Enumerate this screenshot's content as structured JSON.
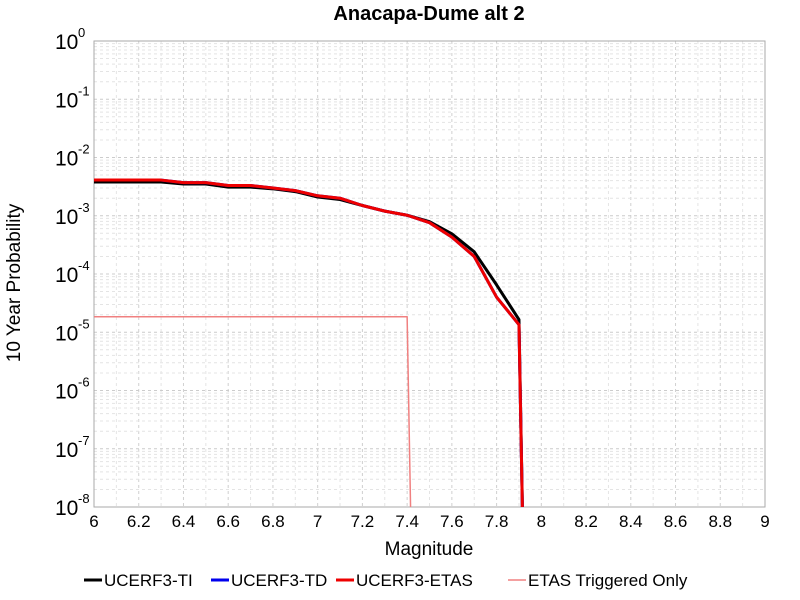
{
  "chart_data": {
    "type": "line",
    "title": "Anacapa-Dume alt 2",
    "xlabel": "Magnitude",
    "ylabel": "10 Year Probability",
    "xlim": [
      6,
      9
    ],
    "ylim": [
      1e-08,
      1
    ],
    "yscale": "log",
    "grid": true,
    "legend_position": "bottom",
    "x_ticks": [
      "6",
      "6.2",
      "6.4",
      "6.6",
      "6.8",
      "7",
      "7.2",
      "7.4",
      "7.6",
      "7.8",
      "8",
      "8.2",
      "8.4",
      "8.6",
      "8.8",
      "9"
    ],
    "y_ticks": [
      {
        "base": "10",
        "exp": "0"
      },
      {
        "base": "10",
        "exp": "-1"
      },
      {
        "base": "10",
        "exp": "-2"
      },
      {
        "base": "10",
        "exp": "-3"
      },
      {
        "base": "10",
        "exp": "-4"
      },
      {
        "base": "10",
        "exp": "-5"
      },
      {
        "base": "10",
        "exp": "-6"
      },
      {
        "base": "10",
        "exp": "-7"
      },
      {
        "base": "10",
        "exp": "-8"
      }
    ],
    "series": [
      {
        "name": "UCERF3-TI",
        "color": "#000000",
        "width": 3,
        "x": [
          6.0,
          6.1,
          6.2,
          6.3,
          6.4,
          6.5,
          6.6,
          6.7,
          6.8,
          6.9,
          7.0,
          7.1,
          7.2,
          7.3,
          7.4,
          7.5,
          7.6,
          7.7,
          7.8,
          7.9,
          7.92
        ],
        "y": [
          0.0038,
          0.0038,
          0.0038,
          0.0038,
          0.0035,
          0.0035,
          0.0031,
          0.0031,
          0.0029,
          0.0026,
          0.0021,
          0.0019,
          0.0015,
          0.0012,
          0.00102,
          0.00079,
          0.00049,
          0.00024,
          6.5e-05,
          1.65e-05,
          1e-09
        ]
      },
      {
        "name": "UCERF3-TD",
        "color": "#0000ee",
        "width": 3,
        "x": [
          6.0,
          6.1,
          6.2,
          6.3,
          6.4,
          6.5,
          6.6,
          6.7,
          6.8,
          6.9,
          7.0,
          7.1,
          7.2,
          7.3,
          7.4,
          7.5,
          7.6,
          7.7,
          7.8,
          7.9,
          7.92
        ],
        "y": [
          0.0041,
          0.0041,
          0.0041,
          0.0041,
          0.0037,
          0.0037,
          0.0033,
          0.0033,
          0.003,
          0.0027,
          0.0022,
          0.002,
          0.0015,
          0.0012,
          0.00102,
          0.00076,
          0.00043,
          0.0002,
          4e-05,
          1.35e-05,
          1e-09
        ]
      },
      {
        "name": "UCERF3-ETAS",
        "color": "#ee0000",
        "width": 3,
        "x": [
          6.0,
          6.1,
          6.2,
          6.3,
          6.4,
          6.5,
          6.6,
          6.7,
          6.8,
          6.9,
          7.0,
          7.1,
          7.2,
          7.3,
          7.4,
          7.5,
          7.6,
          7.7,
          7.8,
          7.9,
          7.92
        ],
        "y": [
          0.0041,
          0.0041,
          0.0041,
          0.0041,
          0.0037,
          0.0037,
          0.0033,
          0.0033,
          0.003,
          0.0027,
          0.0022,
          0.002,
          0.0015,
          0.0012,
          0.00102,
          0.00076,
          0.00043,
          0.0002,
          4e-05,
          1.35e-05,
          1e-09
        ]
      },
      {
        "name": "ETAS Triggered Only",
        "color": "#f08080",
        "width": 1.5,
        "x": [
          6.0,
          7.4,
          7.42
        ],
        "y": [
          1.85e-05,
          1.85e-05,
          1e-09
        ]
      }
    ]
  }
}
